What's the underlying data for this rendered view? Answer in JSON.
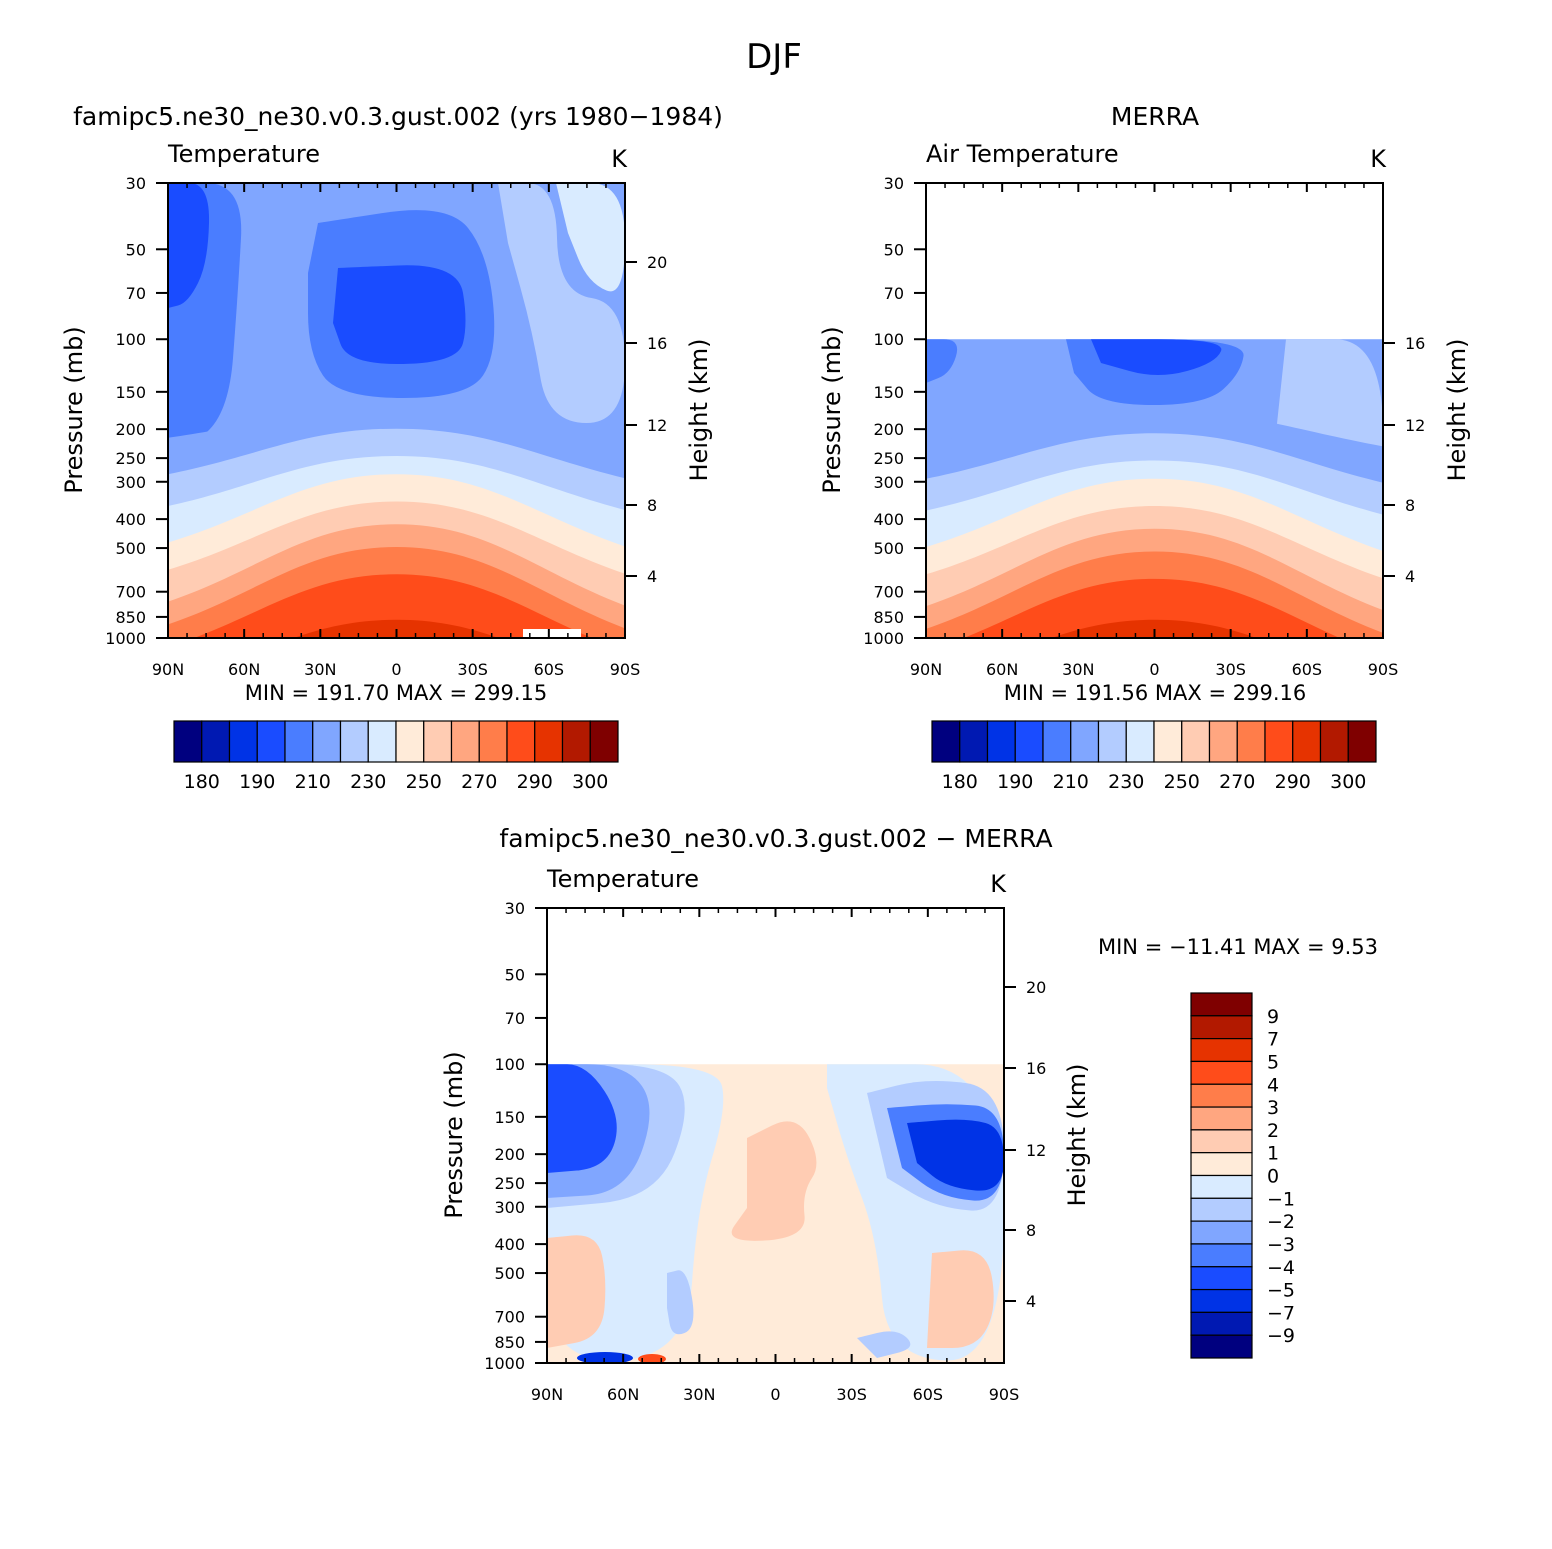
{
  "figure": {
    "title": "DJF",
    "unit": "K"
  },
  "chart_data": [
    {
      "type": "heatmap",
      "title": "famipc5.ne30_ne30.v0.3.gust.002 (yrs 1980−1984)",
      "left_string": "Temperature",
      "right_string": "K",
      "xlabel": "",
      "ylabel": "Pressure (mb)",
      "ylabel_right": "Height (km)",
      "x_ticks": [
        "90N",
        "60N",
        "30N",
        "0",
        "30S",
        "60S",
        "90S"
      ],
      "y_ticks": [
        "30",
        "50",
        "70",
        "100",
        "150",
        "200",
        "250",
        "300",
        "400",
        "500",
        "700",
        "850",
        "1000"
      ],
      "y_ticks_right": [
        "20",
        "16",
        "12",
        "8",
        "4"
      ],
      "ylim": [
        1000,
        30
      ],
      "xlim": [
        "90N",
        "90S"
      ],
      "stats": {
        "min_label": "MIN",
        "min": "191.70",
        "max_label": "MAX",
        "max": "299.15"
      },
      "colorbar_labels": [
        "180",
        "190",
        "210",
        "230",
        "250",
        "270",
        "290",
        "300"
      ]
    },
    {
      "type": "heatmap",
      "title": "MERRA",
      "left_string": "Air Temperature",
      "right_string": "K",
      "xlabel": "",
      "ylabel": "Pressure (mb)",
      "ylabel_right": "Height (km)",
      "x_ticks": [
        "90N",
        "60N",
        "30N",
        "0",
        "30S",
        "60S",
        "90S"
      ],
      "y_ticks": [
        "30",
        "50",
        "70",
        "100",
        "150",
        "200",
        "250",
        "300",
        "400",
        "500",
        "700",
        "850",
        "1000"
      ],
      "y_ticks_right": [
        "16",
        "12",
        "8",
        "4"
      ],
      "ylim": [
        1000,
        30
      ],
      "xlim": [
        "90N",
        "90S"
      ],
      "stats": {
        "min_label": "MIN",
        "min": "191.56",
        "max_label": "MAX",
        "max": "299.16"
      },
      "colorbar_labels": [
        "180",
        "190",
        "210",
        "230",
        "250",
        "270",
        "290",
        "300"
      ]
    },
    {
      "type": "heatmap",
      "title": "famipc5.ne30_ne30.v0.3.gust.002 − MERRA",
      "left_string": "Temperature",
      "right_string": "K",
      "xlabel": "",
      "ylabel": "Pressure (mb)",
      "ylabel_right": "Height (km)",
      "x_ticks": [
        "90N",
        "60N",
        "30N",
        "0",
        "30S",
        "60S",
        "90S"
      ],
      "y_ticks": [
        "30",
        "50",
        "70",
        "100",
        "150",
        "200",
        "250",
        "300",
        "400",
        "500",
        "700",
        "850",
        "1000"
      ],
      "y_ticks_right": [
        "20",
        "16",
        "12",
        "8",
        "4"
      ],
      "ylim": [
        1000,
        30
      ],
      "xlim": [
        "90N",
        "90S"
      ],
      "stats": {
        "min_label": "MIN",
        "min": "−11.41",
        "max_label": "MAX",
        "max": "9.53"
      },
      "colorbar_labels": [
        "9",
        "7",
        "5",
        "4",
        "3",
        "2",
        "1",
        "0",
        "−1",
        "−2",
        "−3",
        "−4",
        "−5",
        "−7",
        "−9"
      ]
    }
  ],
  "colors": {
    "temperature_scale": [
      "#00007f",
      "#0019b2",
      "#0033e6",
      "#1a4cff",
      "#4a7dff",
      "#80a6ff",
      "#b3ccff",
      "#d9ebff",
      "#ffebd9",
      "#ffccb3",
      "#ffa680",
      "#ff7d4a",
      "#ff4c1a",
      "#e63300",
      "#b21900",
      "#7f0000"
    ],
    "difference_scale": [
      "#7f0000",
      "#b21900",
      "#e63300",
      "#ff4c1a",
      "#ff7d4a",
      "#ffa680",
      "#ffccb3",
      "#ffebd9",
      "#d9ebff",
      "#b3ccff",
      "#80a6ff",
      "#4a7dff",
      "#1a4cff",
      "#0033e6",
      "#0019b2",
      "#00007f"
    ]
  }
}
